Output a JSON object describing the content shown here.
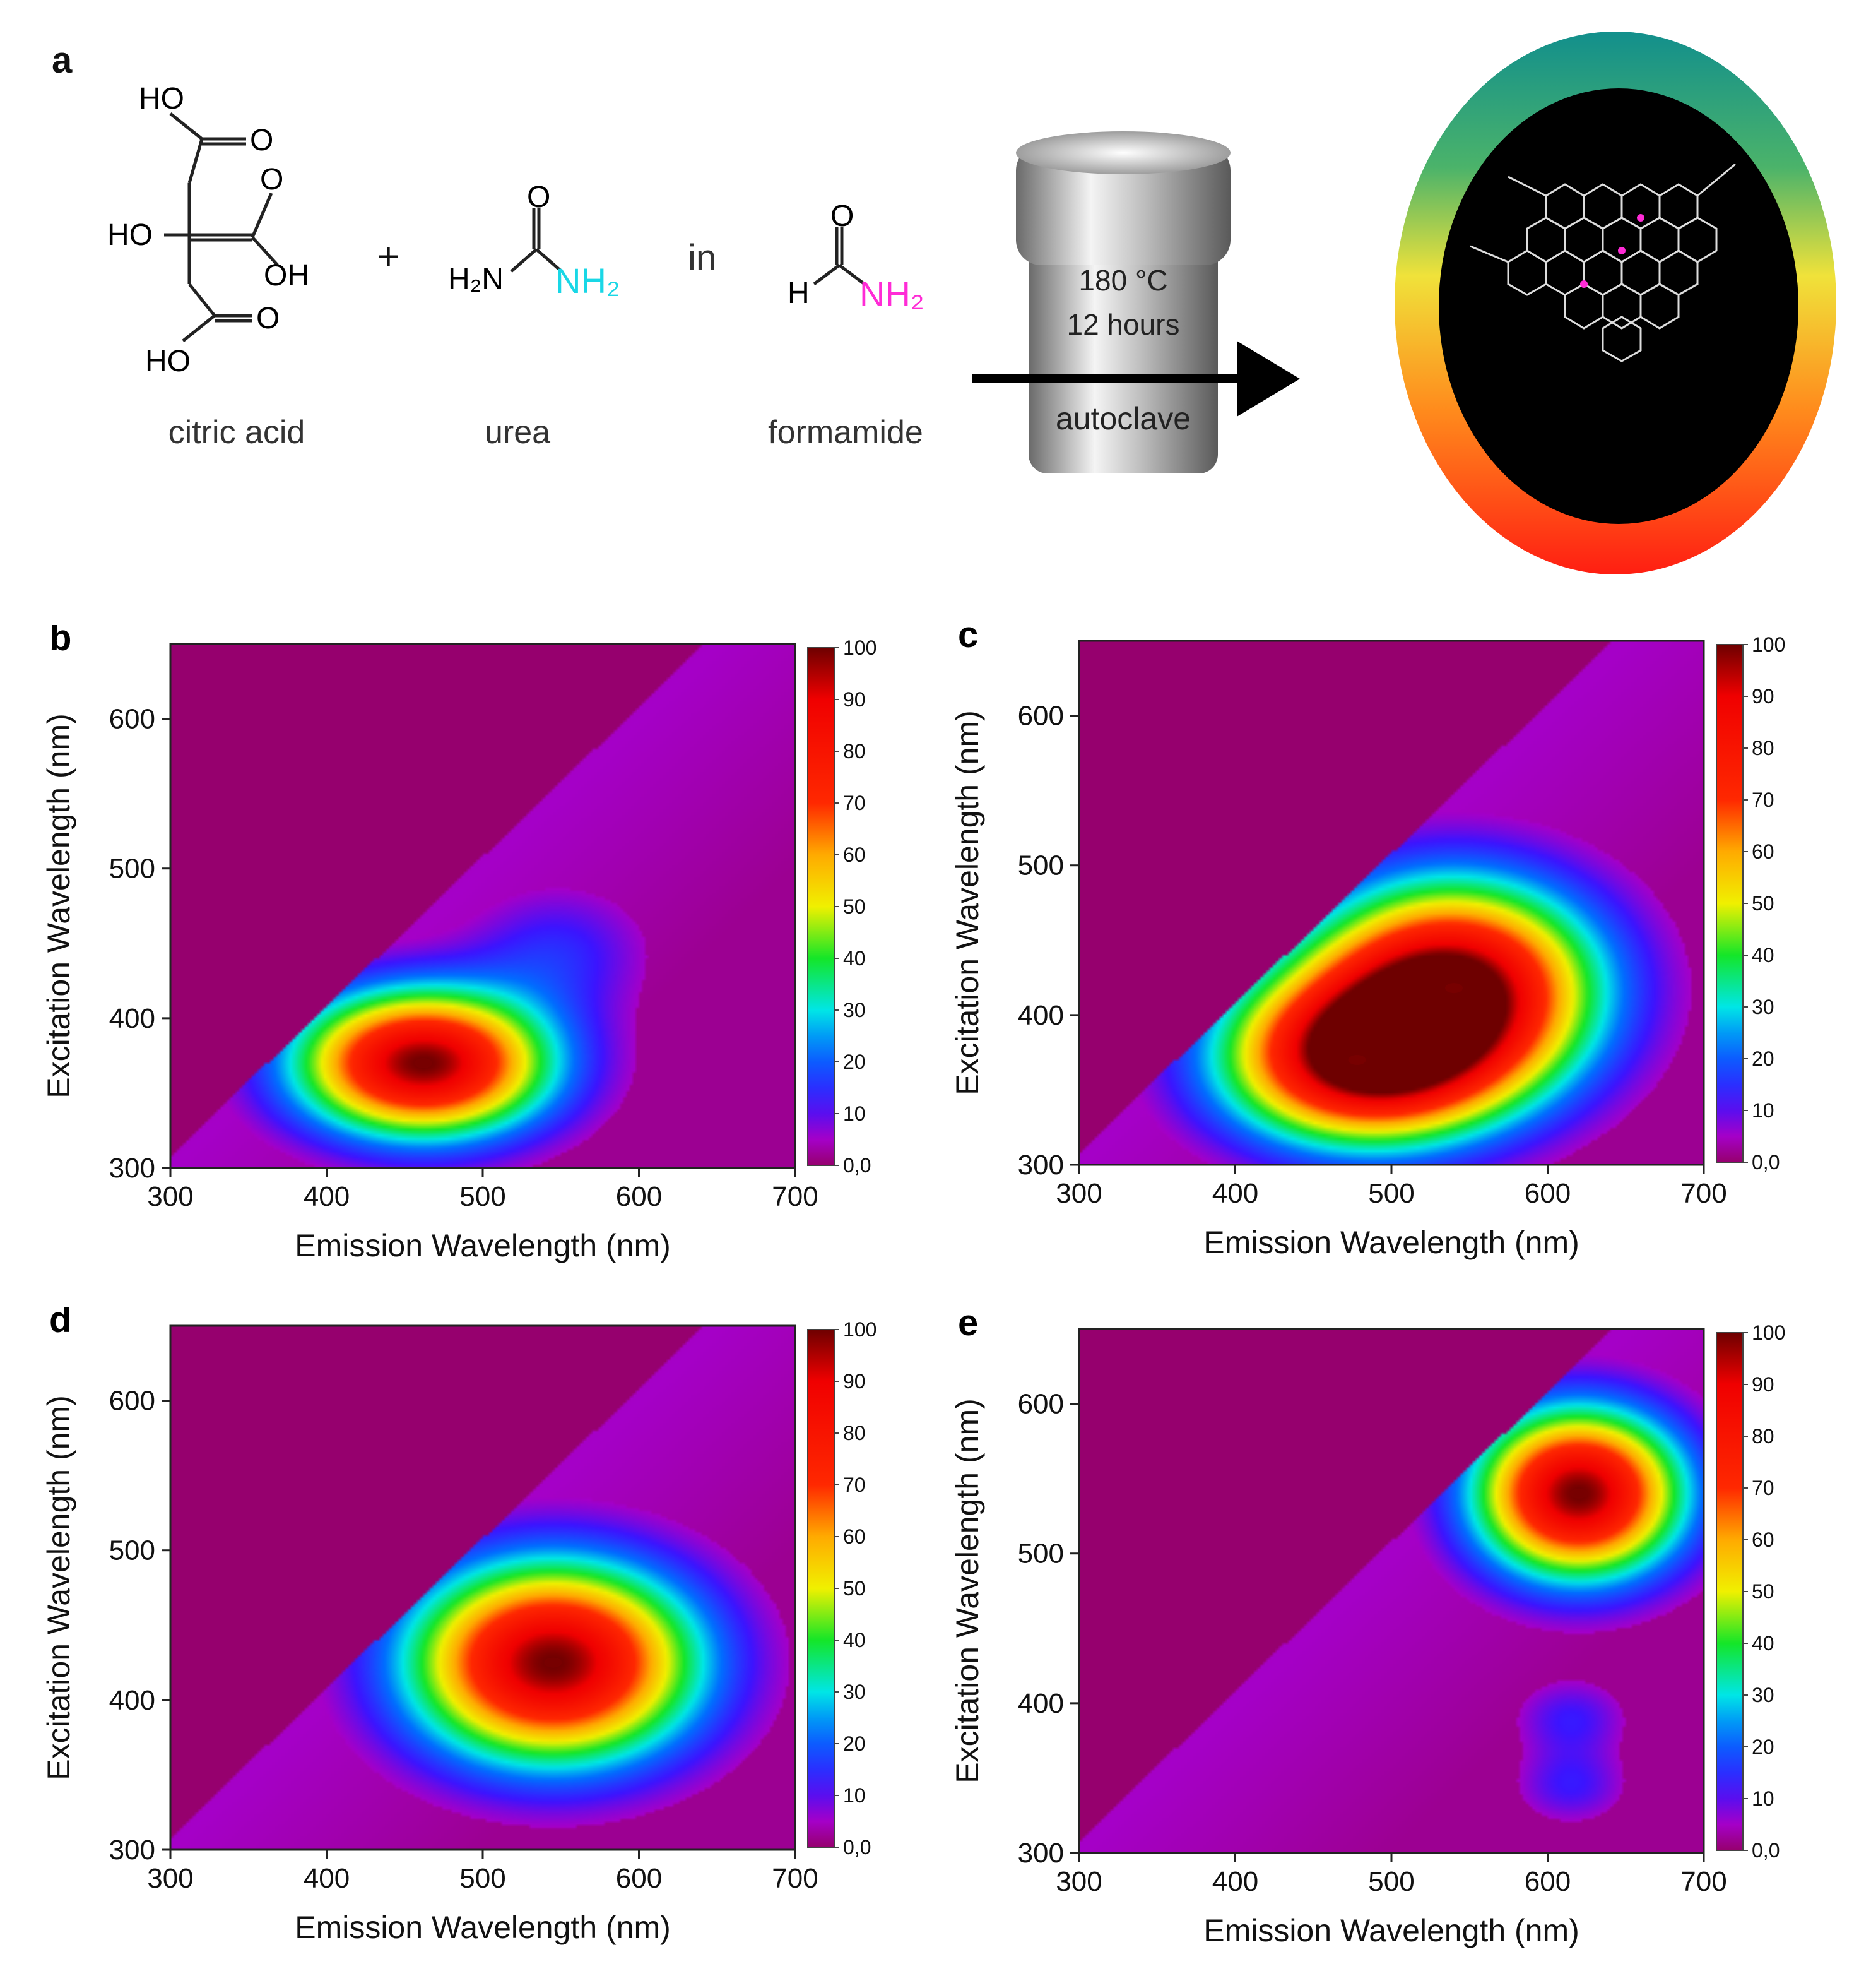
{
  "panel_a": {
    "letter": "a",
    "reagents": {
      "citric_acid": {
        "label": "citric acid",
        "groups": [
          "HO",
          "O",
          "O",
          "HO",
          "OH",
          "O",
          "HO"
        ]
      },
      "plus": "+",
      "urea": {
        "label": "urea",
        "o": "O",
        "h2n": "H₂N",
        "nh2": "NH₂"
      },
      "in": "in",
      "formamide": {
        "label": "formamide",
        "o": "O",
        "h": "H",
        "nh2": "NH₂"
      }
    },
    "autoclave": {
      "temp": "180 °C",
      "time": "12 hours",
      "label": "autoclave"
    },
    "colors": {
      "urea_nh2": "#19d7e6",
      "formamide_nh2": "#ff2bd6",
      "dot_bg": "#000000"
    }
  },
  "chart_data": [
    {
      "panel": "b",
      "type": "heatmap",
      "xlabel": "Emission Wavelength (nm)",
      "ylabel": "Excitation Wavelength (nm)",
      "xlim": [
        300,
        700
      ],
      "ylim": [
        300,
        650
      ],
      "xticks": [
        300,
        400,
        500,
        600,
        700
      ],
      "yticks": [
        300,
        400,
        500,
        600
      ],
      "colorbar": {
        "min": 0,
        "max": 100,
        "ticks": [
          "0,0",
          "10",
          "20",
          "30",
          "40",
          "50",
          "60",
          "70",
          "80",
          "90",
          "100"
        ]
      },
      "peaks": [
        {
          "em": 462,
          "ex": 370,
          "intensity": 100,
          "sx": 55,
          "sy": 33
        },
        {
          "em": 548,
          "ex": 445,
          "intensity": 13,
          "sx": 40,
          "sy": 30
        }
      ],
      "diagonal_cutoff": true
    },
    {
      "panel": "c",
      "type": "heatmap",
      "xlabel": "Emission Wavelength (nm)",
      "ylabel": "Excitation Wavelength (nm)",
      "xlim": [
        300,
        700
      ],
      "ylim": [
        300,
        650
      ],
      "xticks": [
        300,
        400,
        500,
        600,
        700
      ],
      "yticks": [
        300,
        400,
        500,
        600
      ],
      "colorbar": {
        "min": 0,
        "max": 100,
        "ticks": [
          "0,0",
          "10",
          "20",
          "30",
          "40",
          "50",
          "60",
          "70",
          "80",
          "90",
          "100"
        ]
      },
      "peaks": [
        {
          "em": 478,
          "ex": 370,
          "intensity": 90,
          "sx": 60,
          "sy": 38
        },
        {
          "em": 540,
          "ex": 418,
          "intensity": 100,
          "sx": 62,
          "sy": 48
        }
      ],
      "diagonal_cutoff": true
    },
    {
      "panel": "d",
      "type": "heatmap",
      "xlabel": "Emission Wavelength (nm)",
      "ylabel": "Excitation Wavelength (nm)",
      "xlim": [
        300,
        700
      ],
      "ylim": [
        300,
        650
      ],
      "xticks": [
        300,
        400,
        500,
        600,
        700
      ],
      "yticks": [
        300,
        400,
        500,
        600
      ],
      "colorbar": {
        "min": 0,
        "max": 100,
        "ticks": [
          "0,0",
          "10",
          "20",
          "30",
          "40",
          "50",
          "60",
          "70",
          "80",
          "90",
          "100"
        ]
      },
      "peaks": [
        {
          "em": 545,
          "ex": 425,
          "intensity": 100,
          "sx": 62,
          "sy": 45
        }
      ],
      "diagonal_cutoff": true
    },
    {
      "panel": "e",
      "type": "heatmap",
      "xlabel": "Emission Wavelength (nm)",
      "ylabel": "Excitation Wavelength (nm)",
      "xlim": [
        300,
        700
      ],
      "ylim": [
        300,
        650
      ],
      "xticks": [
        300,
        400,
        500,
        600,
        700
      ],
      "yticks": [
        300,
        400,
        500,
        600
      ],
      "colorbar": {
        "min": 0,
        "max": 100,
        "ticks": [
          "0,0",
          "10",
          "20",
          "30",
          "40",
          "50",
          "60",
          "70",
          "80",
          "90",
          "100"
        ]
      },
      "peaks": [
        {
          "em": 620,
          "ex": 540,
          "intensity": 100,
          "sx": 45,
          "sy": 38
        },
        {
          "em": 615,
          "ex": 390,
          "intensity": 12,
          "sx": 25,
          "sy": 18
        },
        {
          "em": 615,
          "ex": 345,
          "intensity": 12,
          "sx": 25,
          "sy": 18
        }
      ],
      "diagonal_cutoff": true
    }
  ]
}
